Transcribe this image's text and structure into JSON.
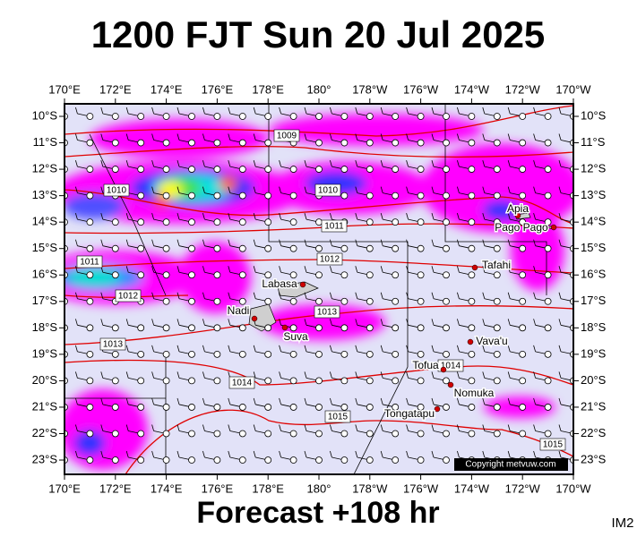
{
  "header": {
    "title": "1200 FJT Sun 20 Jul 2025"
  },
  "footer": {
    "text": "Forecast +108 hr",
    "tag": "IM2"
  },
  "map": {
    "copyright": "Copyright metvuw.com",
    "longitude_labels": [
      "170°E",
      "172°E",
      "174°E",
      "176°E",
      "178°E",
      "180°",
      "178°W",
      "176°W",
      "174°W",
      "172°W",
      "170°W"
    ],
    "latitude_labels": [
      "10°S",
      "11°S",
      "12°S",
      "13°S",
      "14°S",
      "15°S",
      "16°S",
      "17°S",
      "18°S",
      "19°S",
      "20°S",
      "21°S",
      "22°S",
      "23°S"
    ],
    "isobar_labels": [
      "1009",
      "1010",
      "1010",
      "1011",
      "1011",
      "1012",
      "1012",
      "1013",
      "1013",
      "1014",
      "1014",
      "1015",
      "1015"
    ],
    "places": [
      "Apia",
      "Pago Pago",
      "Tafahi",
      "Labasa",
      "Nadi",
      "Suva",
      "Vava'u",
      "Tofua",
      "Nomuka",
      "Tongatapu"
    ]
  }
}
